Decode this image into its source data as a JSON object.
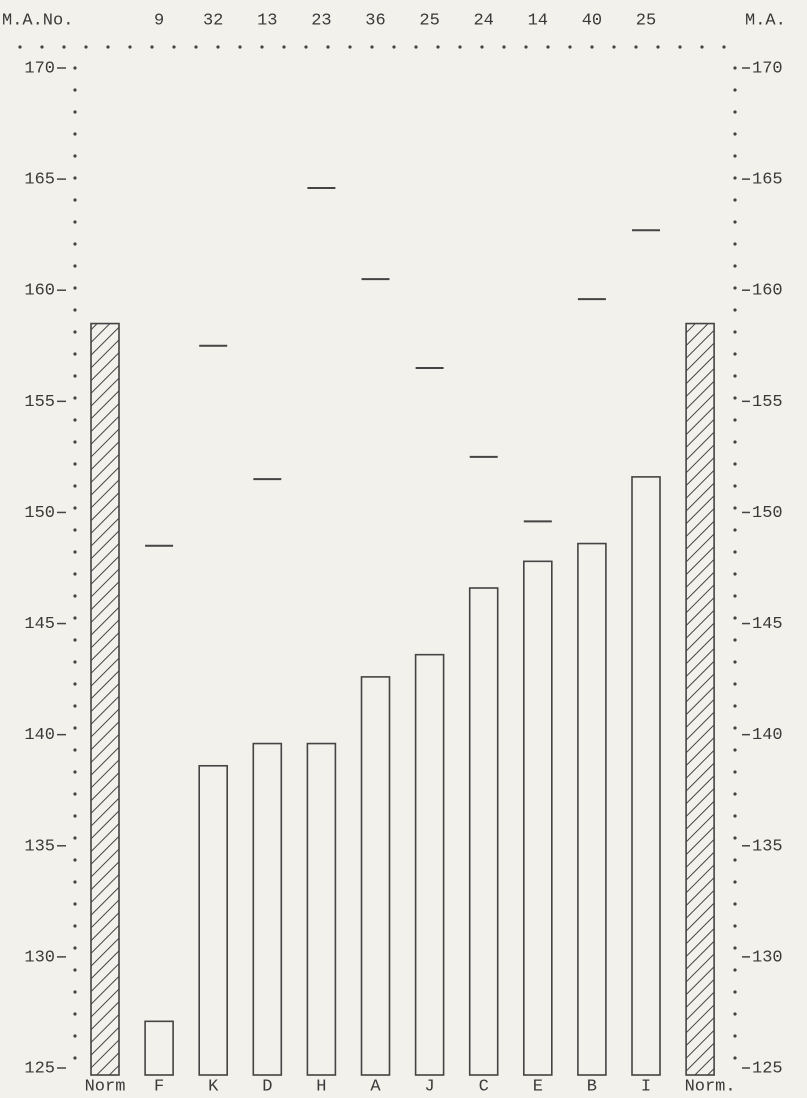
{
  "chart_data": {
    "type": "bar",
    "categories": [
      "Norm",
      "F",
      "K",
      "D",
      "H",
      "A",
      "J",
      "C",
      "E",
      "B",
      "I",
      "Norm."
    ],
    "values": [
      158.5,
      127.1,
      138.6,
      139.6,
      139.6,
      142.6,
      143.6,
      146.6,
      147.8,
      148.6,
      151.6,
      158.5
    ],
    "marks": [
      null,
      148.5,
      157.5,
      151.5,
      164.6,
      160.5,
      156.5,
      152.5,
      149.6,
      159.6,
      162.7,
      null
    ],
    "count_label": "M.A.No.",
    "counts": [
      null,
      9,
      32,
      13,
      23,
      36,
      25,
      24,
      14,
      40,
      25,
      null
    ],
    "y2_label": "M.A.",
    "color": "#444444",
    "ylim": [
      125,
      170
    ],
    "yticks": [
      125,
      130,
      135,
      140,
      145,
      150,
      155,
      160,
      165,
      170
    ],
    "y2lim": [
      125,
      170
    ],
    "y2ticks": [
      125,
      130,
      135,
      140,
      145,
      150,
      155,
      160,
      165,
      170
    ]
  }
}
